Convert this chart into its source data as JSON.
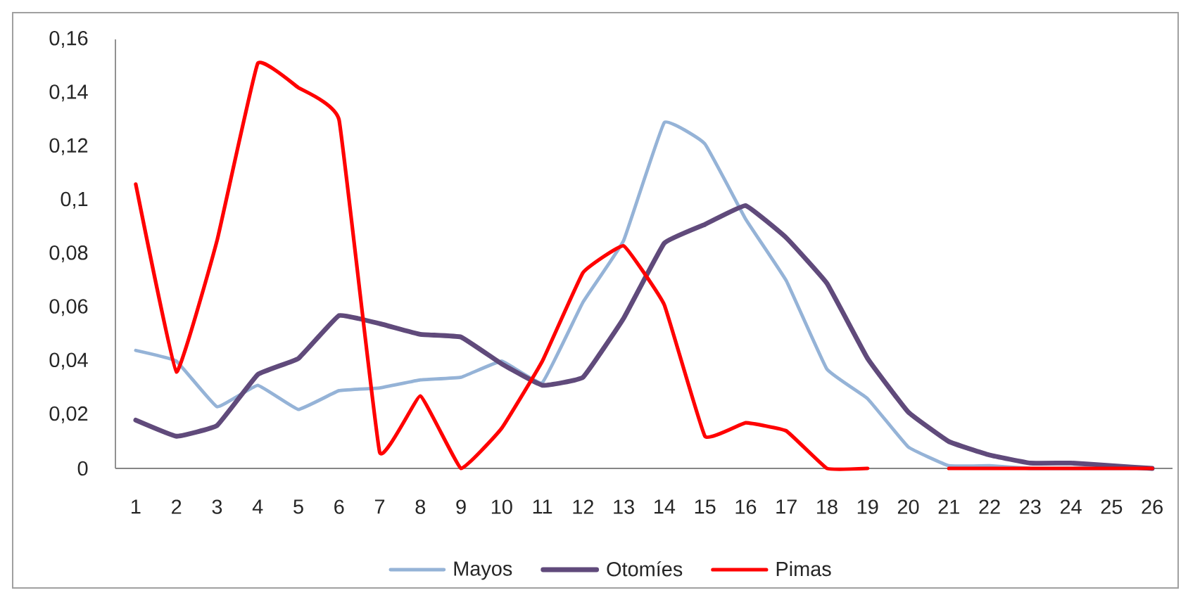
{
  "chart_data": {
    "type": "line",
    "categories": [
      "1",
      "2",
      "3",
      "4",
      "5",
      "6",
      "7",
      "8",
      "9",
      "10",
      "11",
      "12",
      "13",
      "14",
      "15",
      "16",
      "17",
      "18",
      "19",
      "20",
      "21",
      "22",
      "23",
      "24",
      "25",
      "26"
    ],
    "series": [
      {
        "name": "Mayos",
        "color": "#95b3d7",
        "values": [
          0.044,
          0.04,
          0.023,
          0.031,
          0.022,
          0.029,
          0.03,
          0.033,
          0.034,
          0.04,
          0.032,
          0.062,
          0.085,
          0.129,
          0.121,
          0.093,
          0.07,
          0.037,
          0.026,
          0.008,
          0.001,
          0.001,
          0.0,
          0.0,
          0.0,
          0.0
        ]
      },
      {
        "name": "Otomíes",
        "color": "#604a7b",
        "values": [
          0.018,
          0.012,
          0.016,
          0.035,
          0.041,
          0.057,
          0.054,
          0.05,
          0.049,
          0.039,
          0.031,
          0.034,
          0.056,
          0.084,
          0.091,
          0.098,
          0.086,
          0.069,
          0.041,
          0.021,
          0.01,
          0.005,
          0.002,
          0.002,
          0.001,
          0.0
        ]
      },
      {
        "name": "Pimas",
        "color": "#ff0000",
        "values": [
          0.106,
          0.036,
          0.085,
          0.151,
          0.142,
          0.13,
          0.006,
          0.027,
          0.0,
          0.015,
          0.04,
          0.073,
          0.083,
          0.061,
          0.012,
          0.017,
          0.014,
          0.0,
          0.0,
          null,
          0.0,
          0.0,
          0.0,
          0.0,
          0.0,
          0.0
        ]
      }
    ],
    "ylim": [
      0,
      0.16
    ],
    "yticks": [
      0,
      {
        "value": 0.02,
        "label": "0,02"
      },
      {
        "value": 0.04,
        "label": "0,04"
      },
      {
        "value": 0.06,
        "label": "0,06"
      },
      {
        "value": 0.08,
        "label": "0,08"
      },
      {
        "value": 0.1,
        "label": "0,1"
      },
      {
        "value": 0.12,
        "label": "0,12"
      },
      {
        "value": 0.14,
        "label": "0,14"
      },
      {
        "value": 0.16,
        "label": "0,16"
      }
    ],
    "legend": "bottom"
  }
}
